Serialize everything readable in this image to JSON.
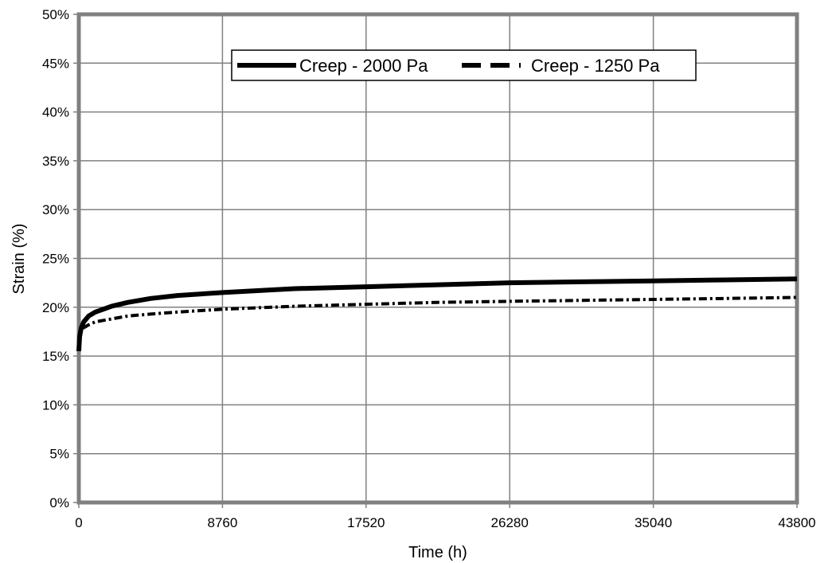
{
  "chart_data": {
    "type": "line",
    "title": "",
    "xlabel": "Time (h)",
    "ylabel": "Strain (%)",
    "xlim": [
      0,
      43800
    ],
    "ylim": [
      0,
      50
    ],
    "x_ticks": [
      0,
      8760,
      17520,
      26280,
      35040,
      43800
    ],
    "x_tick_labels": [
      "0",
      "8760",
      "17520",
      "26280",
      "35040",
      "43800"
    ],
    "y_ticks": [
      0,
      5,
      10,
      15,
      20,
      25,
      30,
      35,
      40,
      45,
      50
    ],
    "y_tick_labels": [
      "0%",
      "5%",
      "10%",
      "15%",
      "20%",
      "25%",
      "30%",
      "35%",
      "40%",
      "45%",
      "50%"
    ],
    "grid": true,
    "legend_position": "top-center",
    "series": [
      {
        "name": "Creep - 2000 Pa",
        "style": "solid",
        "color": "#000000",
        "x": [
          0,
          50,
          150,
          300,
          600,
          1000,
          2000,
          3000,
          4380,
          6000,
          8760,
          13140,
          17520,
          21900,
          26280,
          30660,
          35040,
          39420,
          43800
        ],
        "y": [
          15.5,
          17.0,
          17.9,
          18.5,
          19.1,
          19.5,
          20.1,
          20.5,
          20.9,
          21.2,
          21.5,
          21.9,
          22.1,
          22.3,
          22.5,
          22.6,
          22.7,
          22.8,
          22.9
        ]
      },
      {
        "name": "Creep - 1250 Pa",
        "style": "dashed",
        "color": "#000000",
        "x": [
          0,
          50,
          150,
          300,
          600,
          1000,
          2000,
          3000,
          4380,
          6000,
          8760,
          13140,
          17520,
          21900,
          26280,
          30660,
          35040,
          39420,
          43800
        ],
        "y": [
          16.2,
          17.2,
          17.6,
          17.9,
          18.2,
          18.5,
          18.8,
          19.1,
          19.3,
          19.5,
          19.8,
          20.1,
          20.3,
          20.5,
          20.6,
          20.7,
          20.8,
          20.9,
          21.0
        ]
      }
    ]
  }
}
